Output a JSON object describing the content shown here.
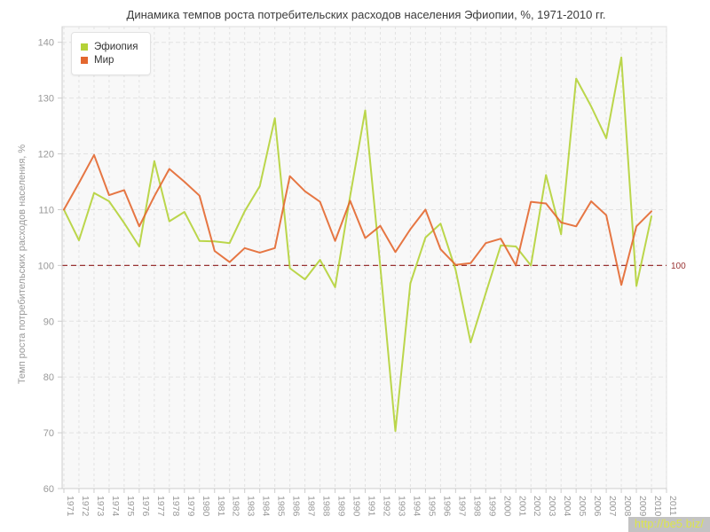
{
  "title": "Динамика темпов роста потребительских расходов населения Эфиопии, %, 1971-2010 гг.",
  "y_axis_title": "Темп роста потребительских расходов населения, %",
  "watermark": "http://be5.biz/",
  "legend": {
    "items": [
      {
        "label": "Эфиопия",
        "color": "#b4d237"
      },
      {
        "label": "Мир",
        "color": "#e3672f"
      }
    ]
  },
  "reference_line": {
    "value": 100,
    "label": "100",
    "color": "#993333"
  },
  "colors": {
    "grid": "#e2e2e2",
    "axis": "#cccccc",
    "tick_text": "#999999",
    "plot_bg": "#f8f8f8",
    "plot_border": "#dddddd"
  },
  "chart_data": {
    "type": "line",
    "title": "Динамика темпов роста потребительских расходов населения Эфиопии, %, 1971-2010 гг.",
    "xlabel": "",
    "ylabel": "Темп роста потребительских расходов населения, %",
    "ylim": [
      60,
      140
    ],
    "yticks": [
      60,
      70,
      80,
      90,
      100,
      110,
      120,
      130,
      140
    ],
    "grid": true,
    "legend_position": "top-left",
    "x_tick_labels": [
      "1971",
      "1972",
      "1973",
      "1974",
      "1975",
      "1976",
      "1977",
      "1978",
      "1979",
      "1980",
      "1981",
      "1982",
      "1983",
      "1984",
      "1985",
      "1986",
      "1987",
      "1988",
      "1989",
      "1990",
      "1991",
      "1992",
      "1993",
      "1994",
      "1995",
      "1996",
      "1997",
      "1998",
      "1999",
      "2000",
      "2001",
      "2002",
      "2003",
      "2004",
      "2005",
      "2006",
      "2007",
      "2008",
      "2009",
      "2010",
      "2011"
    ],
    "years": [
      1971,
      1972,
      1973,
      1974,
      1975,
      1976,
      1977,
      1978,
      1979,
      1980,
      1981,
      1982,
      1983,
      1984,
      1985,
      1986,
      1987,
      1988,
      1989,
      1990,
      1991,
      1992,
      1993,
      1994,
      1995,
      1996,
      1997,
      1998,
      1999,
      2000,
      2001,
      2002,
      2003,
      2004,
      2005,
      2006,
      2007,
      2008,
      2009,
      2010
    ],
    "series": [
      {
        "name": "Эфиопия",
        "color": "#b4d237",
        "values": [
          110.0,
          104.5,
          113.0,
          111.5,
          107.6,
          103.4,
          118.7,
          107.9,
          109.6,
          104.4,
          104.3,
          104.0,
          109.7,
          114.2,
          126.4,
          99.5,
          97.5,
          101.0,
          96.1,
          112.4,
          127.8,
          99.8,
          70.3,
          96.8,
          105.0,
          107.5,
          99.2,
          86.2,
          95.0,
          103.6,
          103.4,
          100.0,
          116.2,
          105.6,
          133.5,
          128.5,
          122.8,
          137.3,
          96.3,
          108.8
        ]
      },
      {
        "name": "Мир",
        "color": "#e3672f",
        "values": [
          110.0,
          114.8,
          119.8,
          112.6,
          113.5,
          107.0,
          112.4,
          117.3,
          115.0,
          112.5,
          102.6,
          100.6,
          103.1,
          102.3,
          103.1,
          116.0,
          113.3,
          111.4,
          104.4,
          111.6,
          104.9,
          107.1,
          102.4,
          106.5,
          110.0,
          102.9,
          100.1,
          100.4,
          104.0,
          104.8,
          100.0,
          111.4,
          111.1,
          107.7,
          107.0,
          111.5,
          109.0,
          96.5,
          107.0,
          109.7
        ]
      }
    ],
    "reference_line": {
      "value": 100,
      "label": "100"
    }
  }
}
